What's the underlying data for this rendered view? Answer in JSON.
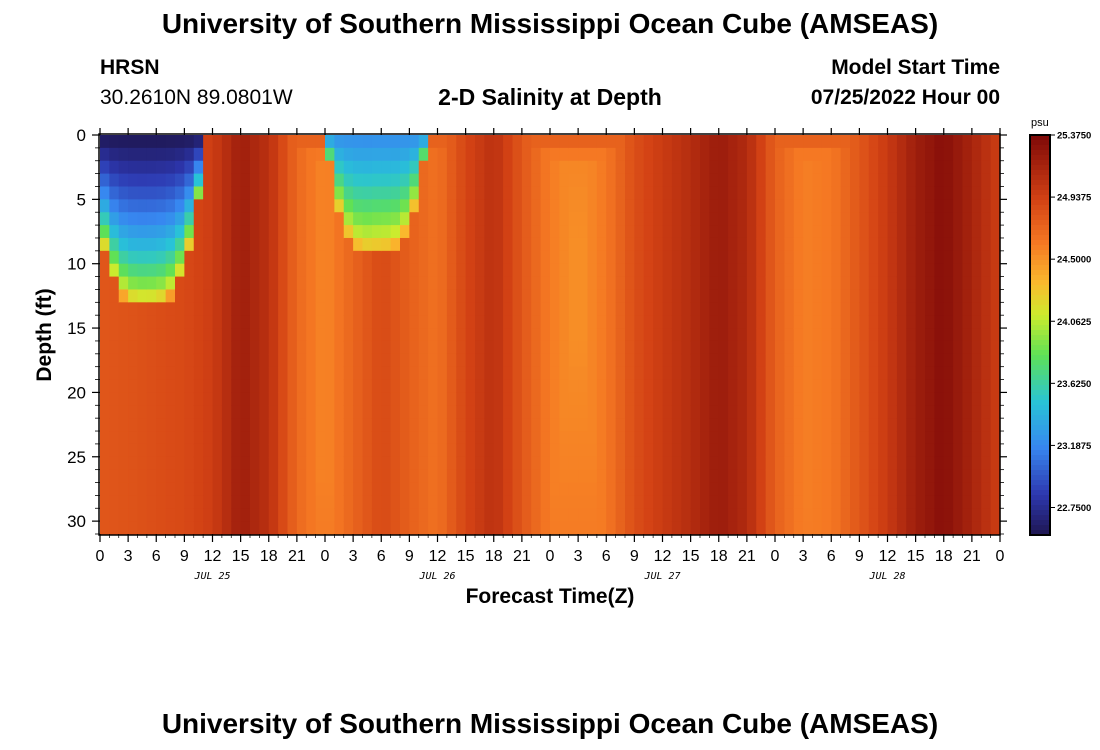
{
  "header": {
    "title": "University of Southern Mississippi Ocean Cube (AMSEAS)",
    "station": "HRSN",
    "coords": "30.2610N  89.0801W",
    "subtitle": "2-D Salinity at Depth",
    "model_start_label": "Model Start Time",
    "model_start_value": "07/25/2022 Hour 00"
  },
  "footer": {
    "title": "University of Southern Mississippi Ocean Cube (AMSEAS)"
  },
  "chart_data": {
    "type": "heatmap",
    "title": "2-D Salinity at Depth",
    "xlabel": "Forecast Time(Z)",
    "ylabel": "Depth (ft)",
    "x_tick_labels": [
      "0",
      "3",
      "6",
      "9",
      "12",
      "15",
      "18",
      "21",
      "0",
      "3",
      "6",
      "9",
      "12",
      "15",
      "18",
      "21",
      "0",
      "3",
      "6",
      "9",
      "12",
      "15",
      "18",
      "21",
      "0",
      "3",
      "6",
      "9",
      "12",
      "15",
      "18",
      "21",
      "0"
    ],
    "day_labels": [
      "JUL 25",
      "JUL 26",
      "JUL 27",
      "JUL 28"
    ],
    "x_range_hours": [
      0,
      96
    ],
    "y_ticks": [
      0,
      5,
      10,
      15,
      20,
      25,
      30
    ],
    "y_range_ft": [
      0,
      31
    ],
    "y_inverted": true,
    "colorbar": {
      "unit": "psu",
      "ticks": [
        "25.3750",
        "24.9375",
        "24.5000",
        "24.0625",
        "23.6250",
        "23.1875",
        "22.7500"
      ],
      "range": [
        22.5563,
        25.375
      ]
    },
    "deep_salinity_by_hour": [
      [
        0,
        24.8
      ],
      [
        3,
        24.82
      ],
      [
        6,
        24.85
      ],
      [
        9,
        24.88
      ],
      [
        12,
        24.95
      ],
      [
        15,
        25.2
      ],
      [
        18,
        25.05
      ],
      [
        21,
        24.7
      ],
      [
        24,
        24.55
      ],
      [
        27,
        24.72
      ],
      [
        30,
        24.88
      ],
      [
        33,
        24.75
      ],
      [
        36,
        24.65
      ],
      [
        39,
        24.9
      ],
      [
        42,
        25.05
      ],
      [
        45,
        24.8
      ],
      [
        48,
        24.6
      ],
      [
        51,
        24.5
      ],
      [
        54,
        24.62
      ],
      [
        57,
        24.85
      ],
      [
        60,
        24.97
      ],
      [
        63,
        25.08
      ],
      [
        66,
        25.22
      ],
      [
        69,
        25.1
      ],
      [
        72,
        24.75
      ],
      [
        75,
        24.58
      ],
      [
        78,
        24.62
      ],
      [
        81,
        24.8
      ],
      [
        84,
        24.98
      ],
      [
        87,
        25.2
      ],
      [
        90,
        25.32
      ],
      [
        93,
        25.15
      ],
      [
        96,
        24.95
      ]
    ],
    "fresh_lenses": [
      {
        "center_hour": 5,
        "max_depth_ft": 13.5,
        "min_salinity": 22.56
      },
      {
        "center_hour": 29.5,
        "max_depth_ft": 9.5,
        "min_salinity": 23.2
      }
    ],
    "deep_salinity_min_profile": [
      [
        0,
        24.8
      ],
      [
        2,
        24.55
      ],
      [
        12,
        24.5
      ],
      [
        31,
        24.6
      ]
    ]
  }
}
